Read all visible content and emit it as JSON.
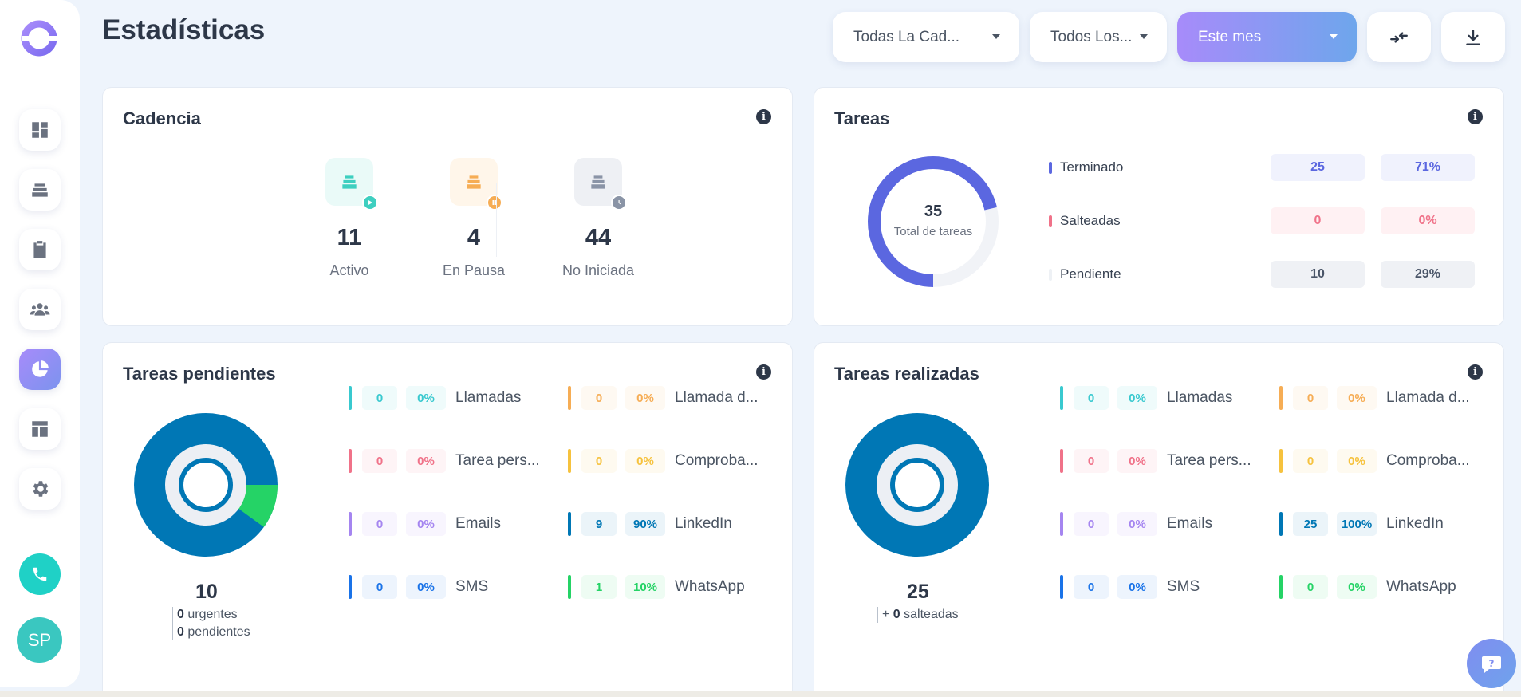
{
  "header": {
    "title": "Estadísticas",
    "filters": [
      {
        "label": "Todas La Cad..."
      },
      {
        "label": "Todos Los..."
      },
      {
        "label": "Este mes"
      }
    ]
  },
  "sidebar": {
    "items": [
      {
        "icon": "dashboard-icon"
      },
      {
        "icon": "layers-icon"
      },
      {
        "icon": "clipboard-icon"
      },
      {
        "icon": "users-icon"
      },
      {
        "icon": "pie-chart-icon",
        "active": true
      },
      {
        "icon": "layout-icon"
      },
      {
        "icon": "gear-icon"
      }
    ],
    "avatar_initials": "SP"
  },
  "cadencia": {
    "title": "Cadencia",
    "items": [
      {
        "value": "11",
        "label": "Activo",
        "color": "#3ecfc0"
      },
      {
        "value": "4",
        "label": "En Pausa",
        "color": "#f6ad55"
      },
      {
        "value": "44",
        "label": "No Iniciada",
        "color": "#8a94a6"
      }
    ]
  },
  "tareas": {
    "title": "Tareas",
    "total": "35",
    "total_label": "Total de tareas",
    "rows": [
      {
        "label": "Terminado",
        "count": "25",
        "pct": "71%",
        "color": "#5b67e0"
      },
      {
        "label": "Salteadas",
        "count": "0",
        "pct": "0%",
        "color": "#f07289"
      },
      {
        "label": "Pendiente",
        "count": "10",
        "pct": "29%",
        "color": "#e8ecf2"
      }
    ]
  },
  "pendientes": {
    "title": "Tareas pendientes",
    "total": "10",
    "urgentes_value": "0",
    "urgentes_label": "urgentes",
    "pendientes_value": "0",
    "pendientes_label": "pendientes",
    "types": [
      {
        "label": "Llamadas",
        "count": "0",
        "pct": "0%",
        "color": "#39c9cf"
      },
      {
        "label": "Llamada d...",
        "count": "0",
        "pct": "0%",
        "color": "#f6ad55"
      },
      {
        "label": "Tarea pers...",
        "count": "0",
        "pct": "0%",
        "color": "#f07289"
      },
      {
        "label": "Comproba...",
        "count": "0",
        "pct": "0%",
        "color": "#f6c23e"
      },
      {
        "label": "Emails",
        "count": "0",
        "pct": "0%",
        "color": "#a585f0"
      },
      {
        "label": "LinkedIn",
        "count": "9",
        "pct": "90%",
        "color": "#0077b5"
      },
      {
        "label": "SMS",
        "count": "0",
        "pct": "0%",
        "color": "#1a73e8"
      },
      {
        "label": "WhatsApp",
        "count": "1",
        "pct": "10%",
        "color": "#25d366"
      }
    ]
  },
  "realizadas": {
    "title": "Tareas realizadas",
    "total": "25",
    "salteadas_prefix": "+",
    "salteadas_value": "0",
    "salteadas_label": "salteadas",
    "types": [
      {
        "label": "Llamadas",
        "count": "0",
        "pct": "0%",
        "color": "#39c9cf"
      },
      {
        "label": "Llamada d...",
        "count": "0",
        "pct": "0%",
        "color": "#f6ad55"
      },
      {
        "label": "Tarea pers...",
        "count": "0",
        "pct": "0%",
        "color": "#f07289"
      },
      {
        "label": "Comproba...",
        "count": "0",
        "pct": "0%",
        "color": "#f6c23e"
      },
      {
        "label": "Emails",
        "count": "0",
        "pct": "0%",
        "color": "#a585f0"
      },
      {
        "label": "LinkedIn",
        "count": "25",
        "pct": "100%",
        "color": "#0077b5"
      },
      {
        "label": "SMS",
        "count": "0",
        "pct": "0%",
        "color": "#1a73e8"
      },
      {
        "label": "WhatsApp",
        "count": "0",
        "pct": "0%",
        "color": "#25d366"
      }
    ]
  }
}
